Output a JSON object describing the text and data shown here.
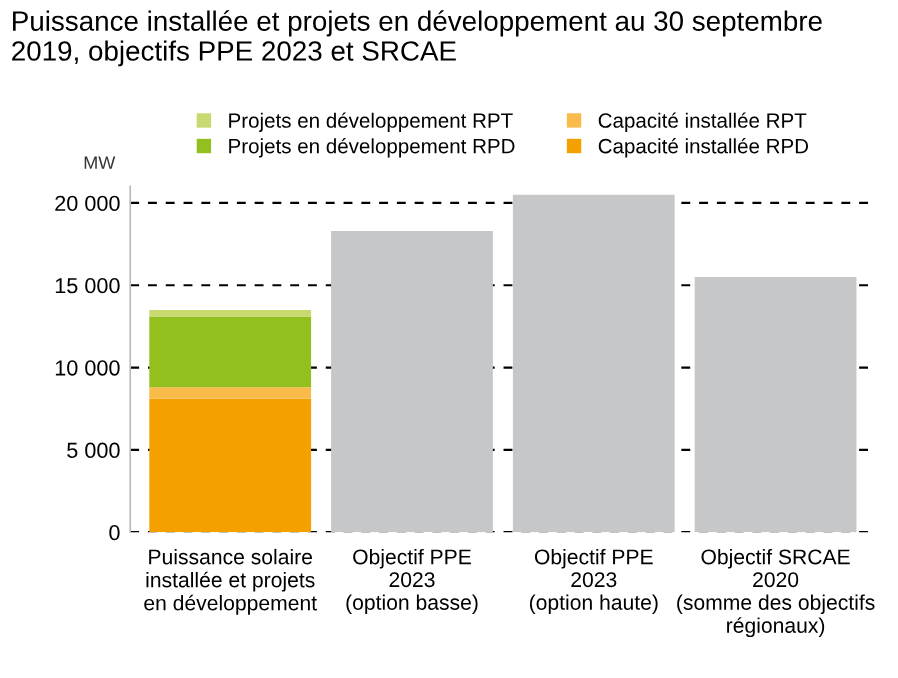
{
  "chart_data": {
    "type": "bar",
    "title": "Puissance installée et projets en développement au 30 septembre 2019, objectifs PPE 2023 et SRCAE",
    "ylabel": "MW",
    "categories": [
      "Puissance solaire\ninstallée et projets\nen développement",
      "Objectif PPE\n2023\n(option basse)",
      "Objectif PPE\n2023\n(option haute)",
      "Objectif SRCAE\n2020\n(somme des objectifs\nrégionaux)"
    ],
    "stacked": true,
    "series": [
      {
        "name": "Capacité installée RPD",
        "color": "#f4a100",
        "values": [
          8100,
          null,
          null,
          null
        ]
      },
      {
        "name": "Capacité installée RPT",
        "color": "#f9bb4a",
        "values": [
          700,
          null,
          null,
          null
        ]
      },
      {
        "name": "Projets en développement RPD",
        "color": "#93c01f",
        "values": [
          4300,
          null,
          null,
          null
        ]
      },
      {
        "name": "Projets en développement RPT",
        "color": "#c8d96f",
        "values": [
          400,
          null,
          null,
          null
        ]
      },
      {
        "color": "#c6c7c9",
        "values": [
          null,
          18300,
          20500,
          15500
        ]
      }
    ],
    "ylim": [
      0,
      21000
    ],
    "yticks": [
      {
        "value": 0,
        "label": "0"
      },
      {
        "value": 5000,
        "label": "5 000"
      },
      {
        "value": 10000,
        "label": "10 000"
      },
      {
        "value": 15000,
        "label": "15 000"
      },
      {
        "value": 20000,
        "label": "20 000"
      }
    ],
    "grid": "y",
    "legend": "top"
  }
}
